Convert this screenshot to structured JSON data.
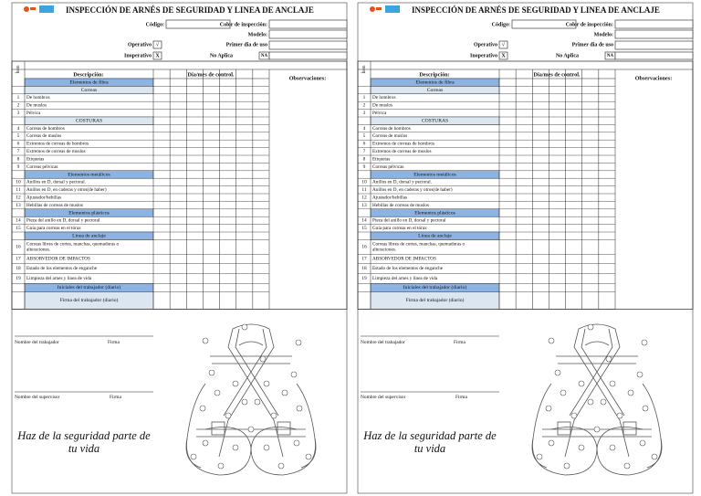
{
  "header": {
    "title": "INSPECCIÓN DE ARNÉS DE SEGURIDAD Y LINEA DE ANCLAJE",
    "code_label": "Código:",
    "color_label": "Color de inspección:",
    "model_label": "Modelo:",
    "operative_label": "Operativo",
    "operative_mark": "√",
    "first_use_label": "Primer dia de uso",
    "inoperative_label": "Inoperativo",
    "inoperative_mark": "X",
    "na_label": "No Aplica",
    "na_mark": "NA"
  },
  "table": {
    "item_header": "Ítem",
    "description_header": "Descripción:",
    "days_header": "Día/mes de control.",
    "observations_header": "Observaciones:",
    "rows": [
      {
        "heading": "Elementos de fibra",
        "color": "#8db3e2"
      },
      {
        "heading": "Correas",
        "color": "#dce6f1"
      },
      {
        "item": 1,
        "description": "De hombros"
      },
      {
        "item": 2,
        "description": "De muslos"
      },
      {
        "item": 3,
        "description": "Pélvica"
      },
      {
        "heading": "COSTURAS",
        "color": "#dce6f1"
      },
      {
        "item": 4,
        "description": "Correas de hombros"
      },
      {
        "item": 5,
        "description": "Correas de muslos"
      },
      {
        "item": 6,
        "description": "Extremos de correas de hombros"
      },
      {
        "item": 7,
        "description": "Extremos de correas de muslos"
      },
      {
        "item": 8,
        "description": "Etiquetas"
      },
      {
        "item": 9,
        "description": "Correas pélvicas"
      },
      {
        "heading": "Elementos metálicos",
        "color": "#8db3e2"
      },
      {
        "item": 10,
        "description": "Anillos en D, dorsal y pectoral."
      },
      {
        "item": 11,
        "description": "Anillos en D, en caderas y otros(de haber)"
      },
      {
        "item": 12,
        "description": "Ajustador/hebillas"
      },
      {
        "item": 13,
        "description": "Hebillas de correas de muslos"
      },
      {
        "heading": "Elementos plásticos",
        "color": "#8db3e2"
      },
      {
        "item": 14,
        "description": "Pieza del anillo en D, dorsal y pectoral"
      },
      {
        "item": 15,
        "description": "Guía para correas en el tórax"
      },
      {
        "heading": "Linea de anclaje",
        "color": "#8db3e2"
      },
      {
        "item": 16,
        "description": "Correas libres de cortes, manchas, quemaduras o alteraciones."
      },
      {
        "item": 17,
        "description": "ABSORVEDOR DE IMPACTOS"
      },
      {
        "item": 18,
        "description": "Estado de los elementos de enganche"
      },
      {
        "item": 19,
        "description": "Limpieza del arnes y linea de vida"
      },
      {
        "heading": "Iniciales del trabajador (diario)",
        "color": "#8db3e2"
      },
      {
        "heading": "Firma del trabajador (diario)",
        "color": "#dce6f1"
      }
    ]
  },
  "signatures": {
    "worker_label": "Nombre del trabajador",
    "worker_sign": "Firma",
    "supervisor_label": "Nombre del supervisor",
    "supervisor_sign": "Firma"
  },
  "slogan": [
    "Haz de la seguridad parte de",
    "tu vida"
  ]
}
